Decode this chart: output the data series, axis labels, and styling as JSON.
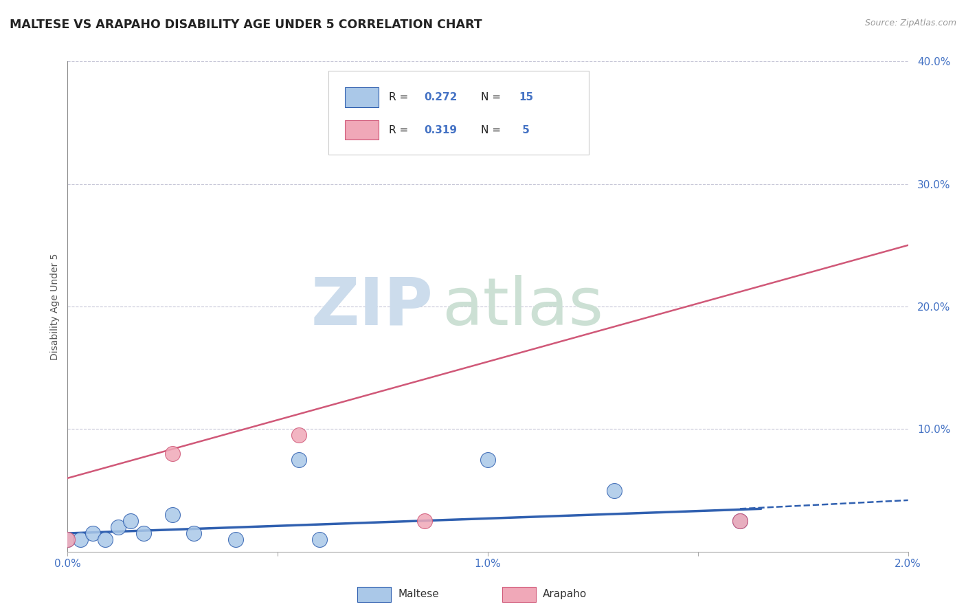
{
  "title": "MALTESE VS ARAPAHO DISABILITY AGE UNDER 5 CORRELATION CHART",
  "source_text": "Source: ZipAtlas.com",
  "ylabel": "Disability Age Under 5",
  "xlim": [
    0.0,
    2.0
  ],
  "ylim": [
    0.0,
    40.0
  ],
  "ytick_positions": [
    0,
    10,
    20,
    30,
    40
  ],
  "ytick_labels": [
    "",
    "10.0%",
    "20.0%",
    "30.0%",
    "40.0%"
  ],
  "xtick_positions": [
    0.0,
    0.5,
    1.0,
    1.5,
    2.0
  ],
  "xtick_labels": [
    "0.0%",
    "",
    "1.0%",
    "",
    "2.0%"
  ],
  "maltese_x": [
    0.0,
    0.03,
    0.06,
    0.09,
    0.12,
    0.15,
    0.18,
    0.25,
    0.3,
    0.4,
    0.55,
    0.6,
    1.0,
    1.3,
    1.6
  ],
  "maltese_y": [
    1.0,
    1.0,
    1.5,
    1.0,
    2.0,
    2.5,
    1.5,
    3.0,
    1.5,
    1.0,
    7.5,
    1.0,
    7.5,
    5.0,
    2.5
  ],
  "arapaho_x": [
    0.0,
    0.25,
    0.55,
    0.85,
    1.6
  ],
  "arapaho_y": [
    1.0,
    8.0,
    9.5,
    2.5,
    2.5
  ],
  "maltese_R": 0.272,
  "maltese_N": 15,
  "arapaho_R": 0.319,
  "arapaho_N": 5,
  "maltese_color": "#aac8e8",
  "arapaho_color": "#f0a8b8",
  "maltese_line_color": "#3060b0",
  "arapaho_line_color": "#d05878",
  "maltese_line_x0": 0.0,
  "maltese_line_y0": 1.5,
  "maltese_line_x1": 1.65,
  "maltese_line_y1": 3.5,
  "maltese_dash_x0": 1.6,
  "maltese_dash_y0": 3.5,
  "maltese_dash_x1": 2.0,
  "maltese_dash_y1": 4.2,
  "arapaho_line_x0": 0.0,
  "arapaho_line_y0": 6.0,
  "arapaho_line_x1": 2.0,
  "arapaho_line_y1": 25.0,
  "legend_r_color": "#4472c4",
  "legend_n_color": "#222222",
  "background_color": "#ffffff",
  "grid_color": "#c8c8d8",
  "title_color": "#222222",
  "axis_label_color": "#4472c4",
  "bottom_legend_maltese": "Maltese",
  "bottom_legend_arapaho": "Arapaho",
  "watermark_zip_color": "#ccdcec",
  "watermark_atlas_color": "#cce0d4"
}
